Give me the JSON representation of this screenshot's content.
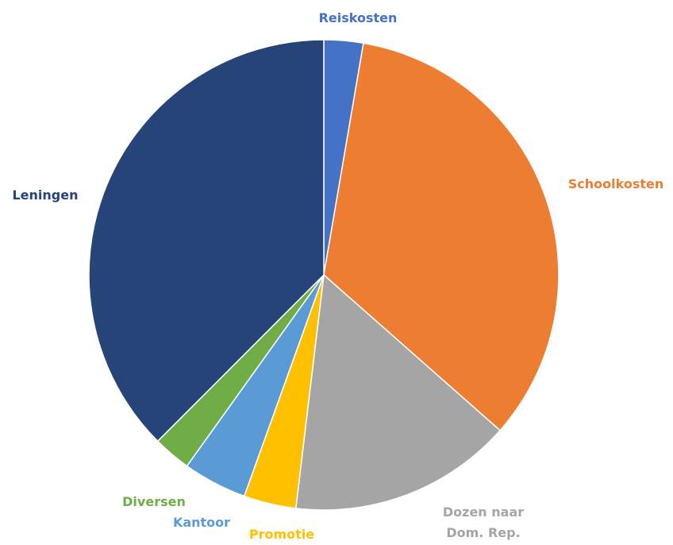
{
  "chart_data": {
    "type": "pie",
    "title": "",
    "categories": [
      "Reiskosten",
      "Schoolkosten",
      "Dozen naar Dom. Rep.",
      "Promotie",
      "Kantoor",
      "Diversen",
      "Leningen"
    ],
    "values": [
      2.7,
      33.8,
      15.4,
      3.6,
      4.4,
      2.6,
      37.5
    ],
    "colors": [
      "#4472C4",
      "#ED7D31",
      "#A5A5A5",
      "#FFC000",
      "#5B9BD5",
      "#70AD47",
      "#264478"
    ],
    "labels": [
      {
        "lines": [
          "Reiskosten"
        ]
      },
      {
        "lines": [
          "Schoolkosten"
        ]
      },
      {
        "lines": [
          "Dozen naar",
          "Dom. Rep."
        ]
      },
      {
        "lines": [
          "Promotie"
        ]
      },
      {
        "lines": [
          "Kantoor"
        ]
      },
      {
        "lines": [
          "Diversen"
        ]
      },
      {
        "lines": [
          "Leningen"
        ]
      }
    ],
    "start_angle_deg": 0,
    "direction": "clockwise",
    "legend": "none",
    "data_labels": "category names outside slices, colored like their slice"
  }
}
